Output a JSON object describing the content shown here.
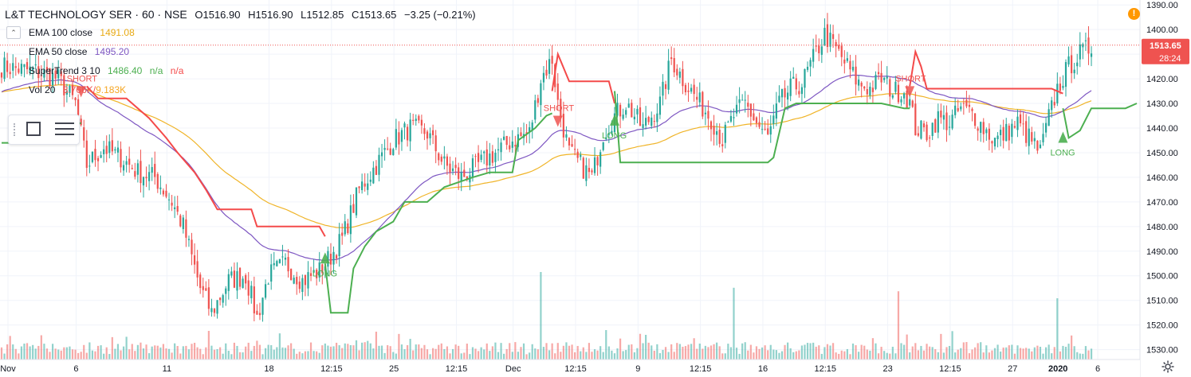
{
  "symbol": {
    "title": "L&T TECHNOLOGY SER · 60 · NSE",
    "open": "O1516.90",
    "high": "H1516.90",
    "low": "L1512.85",
    "close": "C1513.65",
    "change": "−3.25 (−0.21%)"
  },
  "indicators": {
    "ema100": {
      "label": "EMA 100 close",
      "value": "1491.08",
      "color": "#f0b428"
    },
    "ema50": {
      "label": "EMA 50 close",
      "value": "1495.20",
      "color": "#7e57c2"
    },
    "supertrend": {
      "label": "SuperTrend 3 10",
      "value": "1486.40",
      "na1": "n/a",
      "na2": "n/a",
      "up_color": "#4caf50",
      "down_color": "#f44a4a"
    },
    "volume": {
      "label": "Vol 20",
      "value": "3.766K",
      "value2": "9.183K",
      "color": "#ef5350"
    }
  },
  "price_axis": {
    "last_price": "1513.65",
    "countdown": "28:24",
    "ticks": [
      "1530.00",
      "1520.00",
      "1510.00",
      "1500.00",
      "1490.00",
      "1480.00",
      "1470.00",
      "1460.00",
      "1450.00",
      "1440.00",
      "1430.00",
      "1420.00",
      "1410.00",
      "1400.00",
      "1390.00"
    ]
  },
  "time_axis": {
    "labels": [
      "Nov",
      "6",
      "11",
      "18",
      "12:15",
      "25",
      "12:15",
      "Dec",
      "12:15",
      "9",
      "12:15",
      "16",
      "12:15",
      "23",
      "12:15",
      "27",
      "2020",
      "6"
    ]
  },
  "colors": {
    "up": "#26a69a",
    "down": "#ef5350",
    "last_price_bg": "#ef5350",
    "grid": "#f0f3fa"
  },
  "icons": {
    "alert": "alert-icon",
    "gear": "gear-icon",
    "rectangle_tool": "rectangle-tool-icon",
    "lines_tool": "lines-tool-icon"
  },
  "chart_data": {
    "type": "candlestick",
    "title": "L&T TECHNOLOGY SER · 60 · NSE",
    "ylim": [
      1386,
      1532
    ],
    "y_ticks": [
      1390,
      1400,
      1410,
      1420,
      1430,
      1440,
      1450,
      1460,
      1470,
      1480,
      1490,
      1500,
      1510,
      1520,
      1530
    ],
    "x_labels": [
      "Nov",
      "6",
      "11",
      "18",
      "12:15",
      "25",
      "12:15",
      "Dec",
      "12:15",
      "9",
      "12:15",
      "16",
      "12:15",
      "23",
      "12:15",
      "27",
      "2020",
      "6"
    ],
    "anchors": [
      [
        0,
        1505
      ],
      [
        12,
        1503
      ],
      [
        20,
        1500
      ],
      [
        26,
        1490
      ],
      [
        30,
        1465
      ],
      [
        36,
        1472
      ],
      [
        42,
        1468
      ],
      [
        48,
        1462
      ],
      [
        54,
        1460
      ],
      [
        60,
        1450
      ],
      [
        64,
        1440
      ],
      [
        70,
        1415
      ],
      [
        74,
        1405
      ],
      [
        80,
        1418
      ],
      [
        86,
        1420
      ],
      [
        90,
        1403
      ],
      [
        94,
        1420
      ],
      [
        100,
        1425
      ],
      [
        106,
        1418
      ],
      [
        112,
        1422
      ],
      [
        116,
        1428
      ],
      [
        120,
        1435
      ],
      [
        126,
        1455
      ],
      [
        132,
        1465
      ],
      [
        138,
        1475
      ],
      [
        144,
        1480
      ],
      [
        150,
        1478
      ],
      [
        156,
        1465
      ],
      [
        162,
        1460
      ],
      [
        168,
        1465
      ],
      [
        174,
        1470
      ],
      [
        180,
        1475
      ],
      [
        186,
        1478
      ],
      [
        190,
        1500
      ],
      [
        194,
        1508
      ],
      [
        196,
        1490
      ],
      [
        200,
        1470
      ],
      [
        204,
        1465
      ],
      [
        208,
        1460
      ],
      [
        212,
        1478
      ],
      [
        216,
        1485
      ],
      [
        220,
        1490
      ],
      [
        226,
        1480
      ],
      [
        232,
        1490
      ],
      [
        236,
        1508
      ],
      [
        240,
        1500
      ],
      [
        246,
        1490
      ],
      [
        250,
        1484
      ],
      [
        254,
        1475
      ],
      [
        258,
        1485
      ],
      [
        262,
        1490
      ],
      [
        266,
        1482
      ],
      [
        270,
        1476
      ],
      [
        274,
        1490
      ],
      [
        278,
        1496
      ],
      [
        282,
        1498
      ],
      [
        286,
        1508
      ],
      [
        290,
        1518
      ],
      [
        294,
        1512
      ],
      [
        298,
        1505
      ],
      [
        302,
        1498
      ],
      [
        306,
        1496
      ],
      [
        310,
        1500
      ],
      [
        314,
        1495
      ],
      [
        318,
        1495
      ],
      [
        320,
        1490
      ],
      [
        322,
        1480
      ],
      [
        326,
        1478
      ],
      [
        330,
        1484
      ],
      [
        334,
        1482
      ],
      [
        338,
        1488
      ],
      [
        342,
        1486
      ],
      [
        346,
        1480
      ],
      [
        350,
        1475
      ],
      [
        354,
        1478
      ],
      [
        358,
        1482
      ],
      [
        362,
        1476
      ],
      [
        366,
        1470
      ],
      [
        368,
        1480
      ],
      [
        372,
        1496
      ],
      [
        376,
        1505
      ],
      [
        380,
        1510
      ],
      [
        384,
        1513
      ]
    ],
    "candle_count": 385,
    "volume_scale_max": 25000,
    "series": [
      {
        "name": "EMA 100 close",
        "last": 1491.08
      },
      {
        "name": "EMA 50 close",
        "last": 1495.2
      },
      {
        "name": "SuperTrend 3 10",
        "last": 1486.4
      },
      {
        "name": "Vol 20"
      }
    ],
    "supertrend": {
      "segments": [
        {
          "dir": "up",
          "points": [
            [
              0,
              1474
            ],
            [
              4,
              1474
            ],
            [
              8,
              1478
            ],
            [
              12,
              1480
            ],
            [
              20,
              1481
            ],
            [
              28,
              1482
            ]
          ]
        },
        {
          "dir": "down",
          "points": [
            [
              30,
              1497
            ],
            [
              34,
              1492
            ],
            [
              44,
              1492
            ],
            [
              52,
              1484
            ],
            [
              58,
              1476
            ],
            [
              62,
              1470
            ],
            [
              68,
              1462
            ],
            [
              72,
              1455
            ],
            [
              76,
              1447
            ],
            [
              88,
              1447
            ],
            [
              90,
              1440
            ],
            [
              112,
              1440
            ],
            [
              114,
              1436
            ]
          ]
        },
        {
          "dir": "up",
          "points": [
            [
              114,
              1425
            ],
            [
              116,
              1405
            ],
            [
              122,
              1405
            ],
            [
              124,
              1423
            ],
            [
              128,
              1432
            ],
            [
              132,
              1438
            ],
            [
              138,
              1442
            ],
            [
              142,
              1450
            ],
            [
              150,
              1450
            ],
            [
              156,
              1456
            ],
            [
              166,
              1460
            ],
            [
              172,
              1462
            ],
            [
              180,
              1462
            ],
            [
              182,
              1475
            ],
            [
              188,
              1480
            ],
            [
              192,
              1485
            ],
            [
              194,
              1486
            ]
          ]
        },
        {
          "dir": "down",
          "points": [
            [
              194,
              1495
            ],
            [
              196,
              1510
            ],
            [
              200,
              1499
            ],
            [
              214,
              1499
            ],
            [
              216,
              1490
            ]
          ]
        },
        {
          "dir": "up",
          "points": [
            [
              216,
              1495
            ],
            [
              218,
              1466
            ],
            [
              250,
              1466
            ],
            [
              258,
              1466
            ],
            [
              270,
              1466
            ],
            [
              272,
              1468
            ],
            [
              276,
              1488
            ],
            [
              280,
              1490
            ],
            [
              310,
              1490
            ],
            [
              318,
              1488
            ],
            [
              320,
              1488
            ]
          ]
        },
        {
          "dir": "down",
          "points": [
            [
              320,
              1497
            ],
            [
              322,
              1511
            ],
            [
              324,
              1505
            ],
            [
              326,
              1496
            ],
            [
              370,
              1496
            ],
            [
              374,
              1494
            ]
          ]
        },
        {
          "dir": "up",
          "points": [
            [
              374,
              1488
            ],
            [
              376,
              1476
            ],
            [
              380,
              1479
            ],
            [
              384,
              1488
            ],
            [
              386,
              1488
            ],
            [
              396,
              1488
            ],
            [
              400,
              1490
            ]
          ]
        }
      ],
      "signals": [
        {
          "type": "SHORT",
          "index": 28,
          "price": 1497
        },
        {
          "type": "LONG",
          "index": 114,
          "price": 1425
        },
        {
          "type": "SHORT",
          "index": 196,
          "price": 1485
        },
        {
          "type": "LONG",
          "index": 216,
          "price": 1481
        },
        {
          "type": "SHORT",
          "index": 320,
          "price": 1497
        },
        {
          "type": "LONG",
          "index": 374,
          "price": 1474
        }
      ]
    }
  }
}
